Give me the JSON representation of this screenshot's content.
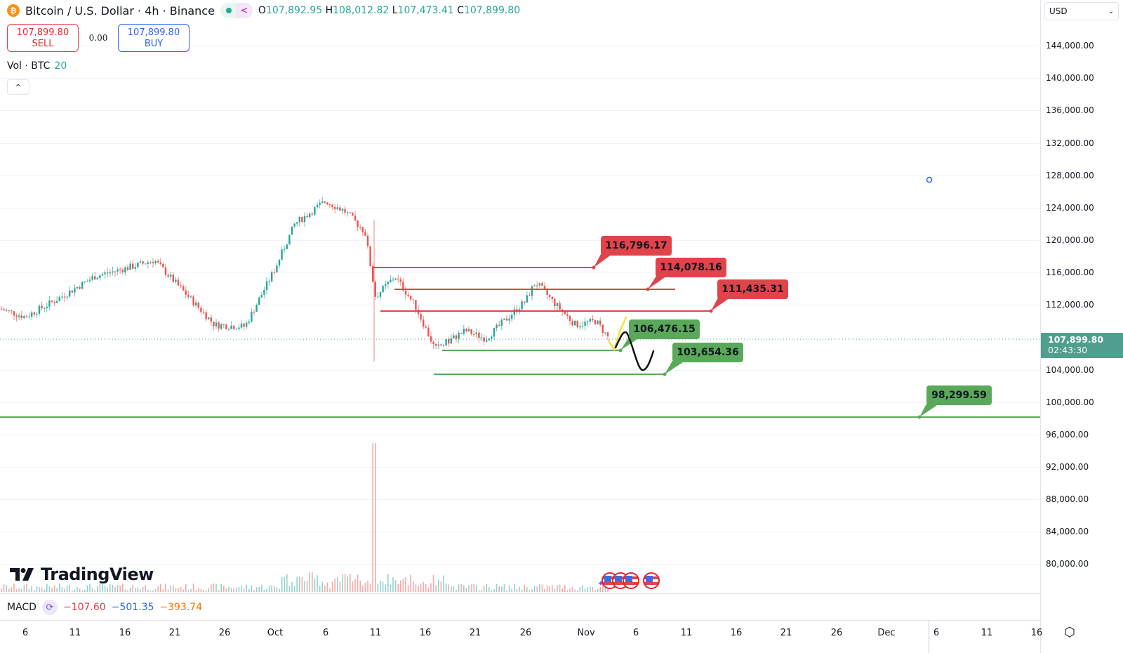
{
  "header": {
    "symbol_title": "Bitcoin / U.S. Dollar · 4h · Binance",
    "btc_icon_glyph": "₿",
    "ohlc": {
      "open_label": "O",
      "open": "107,892.95",
      "high_label": "H",
      "high": "108,012.82",
      "low_label": "L",
      "low": "107,473.41",
      "close_label": "C",
      "close": "107,899.80"
    }
  },
  "trade": {
    "sell_price": "107,899.80",
    "sell_label": "SELL",
    "spread": "0.00",
    "buy_price": "107,899.80",
    "buy_label": "BUY"
  },
  "volume_legend": {
    "label": "Vol · BTC",
    "value": "20"
  },
  "collapse_glyph": "^",
  "price_axis": {
    "currency": "USD",
    "currency_chevron": "⌄",
    "labels": [
      "144,000.00",
      "140,000.00",
      "136,000.00",
      "132,000.00",
      "128,000.00",
      "124,000.00",
      "120,000.00",
      "116,000.00",
      "112,000.00",
      "104,000.00",
      "100,000.00",
      "96,000.00",
      "92,000.00",
      "88,000.00",
      "84,000.00",
      "80,000.00"
    ],
    "current_price": "107,899.80",
    "countdown": "02:43:30"
  },
  "macd": {
    "label": "MACD",
    "v1": "−107.60",
    "v2": "−501.35",
    "v3": "−393.74"
  },
  "time_axis": [
    "6",
    "11",
    "16",
    "21",
    "26",
    "Oct",
    "6",
    "11",
    "16",
    "21",
    "26",
    "Nov",
    "6",
    "11",
    "16",
    "21",
    "26",
    "Dec",
    "6",
    "11",
    "16"
  ],
  "watermark": "TradingView",
  "colors": {
    "up": "#26a69a",
    "down": "#ef5350",
    "resistance": "#e0444b",
    "support": "#5aa95a",
    "price_tag": "#4f9e8e"
  },
  "annotations": {
    "resistance": [
      "116,796.17",
      "114,078.16",
      "111,435.31"
    ],
    "support": [
      "106,476.15",
      "103,654.36",
      "98,299.59"
    ]
  },
  "chart_data": {
    "type": "candlestick",
    "title": "Bitcoin / U.S. Dollar · 4h · Binance",
    "xlabel": "",
    "ylabel": "USD",
    "ylim": [
      78000,
      146000
    ],
    "x_ticks": [
      "Sep 6",
      "Sep 11",
      "Sep 16",
      "Sep 21",
      "Sep 26",
      "Oct",
      "Oct 6",
      "Oct 11",
      "Oct 16",
      "Oct 21",
      "Oct 26",
      "Nov",
      "Nov 6",
      "Nov 11",
      "Nov 16",
      "Nov 21",
      "Nov 26",
      "Dec",
      "Dec 6",
      "Dec 11",
      "Dec 16"
    ],
    "y_ticks": [
      80000,
      84000,
      88000,
      92000,
      96000,
      100000,
      104000,
      112000,
      116000,
      120000,
      124000,
      128000,
      132000,
      136000,
      140000,
      144000
    ],
    "approx_close_path": [
      {
        "x": "Sep 4",
        "y": 111500
      },
      {
        "x": "Sep 6",
        "y": 110500
      },
      {
        "x": "Sep 9",
        "y": 112500
      },
      {
        "x": "Sep 13",
        "y": 115500
      },
      {
        "x": "Sep 17",
        "y": 116800
      },
      {
        "x": "Sep 19",
        "y": 117500
      },
      {
        "x": "Sep 22",
        "y": 113500
      },
      {
        "x": "Sep 25",
        "y": 109500
      },
      {
        "x": "Sep 28",
        "y": 109300
      },
      {
        "x": "Oct 1",
        "y": 116500
      },
      {
        "x": "Oct 3",
        "y": 122000
      },
      {
        "x": "Oct 6",
        "y": 124800
      },
      {
        "x": "Oct 8",
        "y": 123500
      },
      {
        "x": "Oct 10",
        "y": 121000
      },
      {
        "x": "Oct 11",
        "y": 113000
      },
      {
        "x": "Oct 13",
        "y": 115500
      },
      {
        "x": "Oct 15",
        "y": 111800
      },
      {
        "x": "Oct 17",
        "y": 106500
      },
      {
        "x": "Oct 20",
        "y": 108800
      },
      {
        "x": "Oct 22",
        "y": 107800
      },
      {
        "x": "Oct 26",
        "y": 112500
      },
      {
        "x": "Oct 27",
        "y": 114800
      },
      {
        "x": "Oct 29",
        "y": 112000
      },
      {
        "x": "Oct 31",
        "y": 109500
      },
      {
        "x": "Nov 2",
        "y": 110000
      },
      {
        "x": "Nov 3",
        "y": 107900
      }
    ],
    "key_levels": {
      "resistance": [
        116796.17,
        114078.16,
        111435.31
      ],
      "support": [
        106476.15,
        103654.36,
        98299.59
      ]
    },
    "last": {
      "open": 107892.95,
      "high": 108012.82,
      "low": 107473.41,
      "close": 107899.8
    },
    "volume_spike": {
      "x": "Oct 11",
      "note": "largest volume bar"
    },
    "macd": {
      "macd": -107.6,
      "signal": -501.35,
      "histogram": -393.74
    }
  }
}
